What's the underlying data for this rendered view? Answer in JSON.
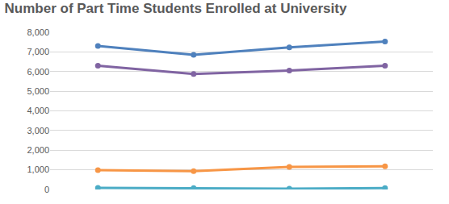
{
  "chart_data": {
    "type": "line",
    "title": "Number of Part Time Students Enrolled at University",
    "categories": [
      null,
      null,
      null,
      null
    ],
    "series": [
      {
        "color": "#4f81bd",
        "values": [
          7300,
          6850,
          7230,
          7530
        ]
      },
      {
        "color": "#8064a2",
        "values": [
          6300,
          5880,
          6050,
          6300
        ]
      },
      {
        "color": "#f79646",
        "values": [
          980,
          930,
          1150,
          1180
        ]
      },
      {
        "color": "#4bacc6",
        "values": [
          80,
          70,
          40,
          70
        ]
      }
    ],
    "ylim": [
      0,
      8000
    ],
    "yticks": [
      0,
      {
        "value": 1000,
        "label": "1,000"
      },
      {
        "value": 2000,
        "label": "2,000"
      },
      {
        "value": 3000,
        "label": "3,000"
      },
      {
        "value": 4000,
        "label": "4,000"
      },
      {
        "value": 5000,
        "label": "5,000"
      },
      {
        "value": 6000,
        "label": "6,000"
      },
      {
        "value": 7000,
        "label": "7,000"
      },
      {
        "value": 8000,
        "label": "8,000"
      }
    ],
    "grid": true,
    "marker": "circle",
    "tick_labels": "y"
  }
}
